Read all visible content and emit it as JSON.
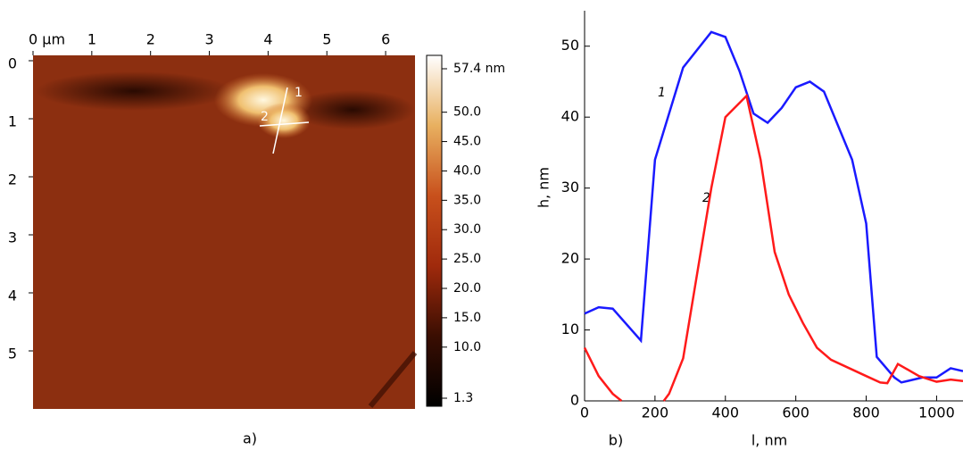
{
  "chart_data": [
    {
      "type": "image",
      "xlim": [
        0,
        6.5
      ],
      "ylim": [
        0,
        6
      ],
      "xticks": [
        {
          "value": 0,
          "label": "0 µm"
        },
        1,
        2,
        3,
        4,
        5,
        6
      ],
      "yticks": [
        0,
        1,
        2,
        3,
        4,
        5
      ],
      "clim": [
        1.3,
        57.4
      ],
      "cticks": [
        {
          "value": 57.4,
          "label": "57.4 nm"
        },
        {
          "value": 50,
          "label": "50.0"
        },
        {
          "value": 45,
          "label": "45.0"
        },
        {
          "value": 40,
          "label": "40.0"
        },
        {
          "value": 35,
          "label": "35.0"
        },
        {
          "value": 30,
          "label": "30.0"
        },
        {
          "value": 25,
          "label": "25.0"
        },
        {
          "value": 20,
          "label": "20.0"
        },
        {
          "value": 15,
          "label": "15.0"
        },
        {
          "value": 10,
          "label": "10.0"
        },
        1.3
      ],
      "annotations": [
        "1",
        "2"
      ],
      "panel_label": "a)"
    },
    {
      "type": "line",
      "xlabel": "l, nm",
      "ylabel": "h, nm",
      "xlim": [
        0,
        1075
      ],
      "ylim": [
        0,
        55
      ],
      "xticks": [
        0,
        200,
        400,
        600,
        800,
        1000
      ],
      "yticks": [
        0,
        10,
        20,
        30,
        40,
        50
      ],
      "series": [
        {
          "name": "1",
          "color": "#1a1aff",
          "x": [
            0,
            40,
            80,
            160,
            200,
            280,
            360,
            400,
            440,
            480,
            520,
            560,
            600,
            640,
            680,
            760,
            800,
            830,
            880,
            900,
            960,
            1000,
            1040,
            1075
          ],
          "values": [
            12.3,
            13.2,
            13,
            8.5,
            34,
            47,
            52,
            51.3,
            46.5,
            40.5,
            39.2,
            41.3,
            44.2,
            45,
            43.6,
            34,
            25,
            6.2,
            3.3,
            2.6,
            3.3,
            3.3,
            4.6,
            4.2
          ]
        },
        {
          "name": "2",
          "color": "#ff1a1a",
          "x": [
            0,
            40,
            80,
            105,
            160,
            225,
            240,
            280,
            320,
            360,
            400,
            460,
            500,
            540,
            580,
            620,
            660,
            700,
            800,
            840,
            860,
            890,
            950,
            1000,
            1040,
            1075
          ],
          "values": [
            7.5,
            3.5,
            1,
            0,
            null,
            0,
            1,
            6,
            18,
            30,
            40,
            43,
            34,
            21,
            15,
            11,
            7.5,
            5.8,
            3.5,
            2.6,
            2.5,
            5.2,
            3.5,
            2.7,
            3,
            2.8
          ]
        }
      ],
      "panel_label": "b)"
    }
  ]
}
